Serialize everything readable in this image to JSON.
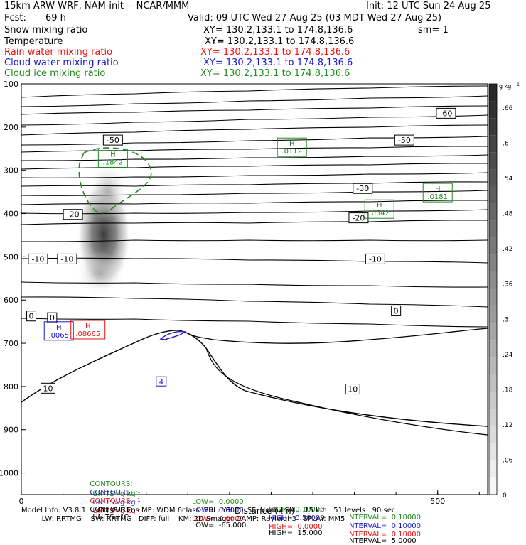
{
  "header": {
    "model": "15km ARW WRF, NAM-init -- NCAR/MMM",
    "init": "Init: 12 UTC Sun 24 Aug 25",
    "fcst_label": "Fcst:",
    "fcst_value": "69 h",
    "valid": "Valid: 09 UTC Wed 27 Aug 25 (03 MDT Wed 27 Aug 25)",
    "fields": [
      {
        "name": "Snow mixing ratio",
        "xy": "XY= 130.2,133.1 to 174.8,136.6",
        "extra": "sm= 1",
        "color": "#000000"
      },
      {
        "name": "Temperature",
        "xy": "XY= 130.2,133.1 to 174.8,136.6",
        "extra": "",
        "color": "#000000"
      },
      {
        "name": "Rain water mixing ratio",
        "xy": "XY= 130.2,133.1 to 174.8,136.6",
        "extra": "",
        "color": "#ee1111"
      },
      {
        "name": "Cloud water mixing ratio",
        "xy": "XY= 130.2,133.1 to 174.8,136.6",
        "extra": "",
        "color": "#1a1acc"
      },
      {
        "name": "Cloud ice mixing ratio",
        "xy": "XY= 130.2,133.1 to 174.8,136.6",
        "extra": "",
        "color": "#228b22"
      }
    ]
  },
  "chart_data": {
    "type": "contour",
    "xlabel": "Distance (km)",
    "x_ticks": [
      {
        "value": 0,
        "label": "0"
      },
      {
        "value": 500,
        "label": "500"
      }
    ],
    "xlim": [
      0,
      560
    ],
    "y_ticks": [
      {
        "p": 100,
        "label": "100"
      },
      {
        "p": 200,
        "label": "200"
      },
      {
        "p": 300,
        "label": "300"
      },
      {
        "p": 400,
        "label": "400"
      },
      {
        "p": 500,
        "label": "500"
      },
      {
        "p": 600,
        "label": "600"
      },
      {
        "p": 700,
        "label": "700"
      },
      {
        "p": 800,
        "label": "800"
      },
      {
        "p": 900,
        "label": "900"
      },
      {
        "p": 1000,
        "label": "1000"
      }
    ],
    "ylim_hpa": [
      100,
      1050
    ],
    "colorbar": {
      "units_label": "g kg",
      "units_exp": "-1",
      "range": [
        0,
        0.7
      ],
      "ticks": [
        {
          "value": 0,
          "label": "0"
        },
        {
          "value": 0.06,
          "label": ".06"
        },
        {
          "value": 0.12,
          "label": ".12"
        },
        {
          "value": 0.18,
          "label": ".18"
        },
        {
          "value": 0.24,
          "label": ".24"
        },
        {
          "value": 0.3,
          "label": ".3"
        },
        {
          "value": 0.36,
          "label": ".36"
        },
        {
          "value": 0.42,
          "label": ".42"
        },
        {
          "value": 0.48,
          "label": ".48"
        },
        {
          "value": 0.54,
          "label": ".54"
        },
        {
          "value": 0.6,
          "label": ".6"
        },
        {
          "value": 0.66,
          "label": ".66"
        }
      ]
    },
    "temperature_labels": [
      {
        "value": -60,
        "label": "-60",
        "x_km": 510,
        "p": 168
      },
      {
        "value": -50,
        "label": "-50",
        "x_km": 110,
        "p": 230
      },
      {
        "value": -50,
        "label": "-50",
        "x_km": 460,
        "p": 230
      },
      {
        "value": -30,
        "label": "-30",
        "x_km": 410,
        "p": 342
      },
      {
        "value": -20,
        "label": "-20",
        "x_km": 62,
        "p": 402
      },
      {
        "value": -20,
        "label": "-20",
        "x_km": 405,
        "p": 410
      },
      {
        "value": -10,
        "label": "-10",
        "x_km": 20,
        "p": 505
      },
      {
        "value": -10,
        "label": "-10",
        "x_km": 55,
        "p": 505
      },
      {
        "value": -10,
        "label": "-10",
        "x_km": 425,
        "p": 505
      },
      {
        "value": 0,
        "label": "0",
        "x_km": 12,
        "p": 637
      },
      {
        "value": 0,
        "label": "0",
        "x_km": 37,
        "p": 641
      },
      {
        "value": 0,
        "label": "0",
        "x_km": 450,
        "p": 625
      },
      {
        "value": 10,
        "label": "10",
        "x_km": 32,
        "p": 804
      },
      {
        "value": 10,
        "label": "10",
        "x_km": 398,
        "p": 806
      }
    ],
    "maxima": [
      {
        "field": "Cloud ice mixing ratio",
        "label": "H",
        "value": ".1842",
        "x_km": 110,
        "p": 270,
        "color": "#228b22"
      },
      {
        "field": "Cloud ice mixing ratio",
        "label": "H",
        "value": ".0112",
        "x_km": 325,
        "p": 245,
        "color": "#228b22"
      },
      {
        "field": "Cloud ice mixing ratio",
        "label": "H",
        "value": ".0542",
        "x_km": 430,
        "p": 388,
        "color": "#228b22"
      },
      {
        "field": "Cloud ice mixing ratio",
        "label": "H",
        "value": ".0181",
        "x_km": 500,
        "p": 350,
        "color": "#228b22"
      },
      {
        "field": "Cloud water mixing ratio",
        "label": "H",
        "value": ".0065",
        "x_km": 45,
        "p": 670,
        "color": "#1a1acc"
      },
      {
        "field": "Rain water mixing ratio",
        "label": "H",
        "value": ".08665",
        "x_km": 80,
        "p": 667,
        "color": "#ee1111"
      }
    ],
    "cloud_water_label": {
      "label": "4",
      "x_km": 168,
      "p": 789
    },
    "snow_max_g_per_kg": 0.66
  },
  "contour_info": [
    {
      "field": "Cloud ice mixing ratio",
      "contours": "CONTOURS:",
      "units": "UNITS=g kg",
      "exp": "-1",
      "low": "LOW=  0.0000",
      "high": "HIGH= 0.10000",
      "interval": "INTERVAL=  0.10000",
      "color": "#228b22"
    },
    {
      "field": "Cloud water mixing ratio",
      "contours": "CONTOURS:",
      "units": "UNITS=g kg",
      "exp": "-1",
      "low": "LOW=  0.0000",
      "high": "HIGH= 0.50000",
      "interval": "INTERVAL=  0.10000",
      "color": "#1a1acc"
    },
    {
      "field": "Rain water mixing ratio",
      "contours": "CONTOURS:",
      "units": "UNITS=g kg",
      "exp": "-1",
      "low": "LOW=  0.0000",
      "high": "HIGH=  0.0000",
      "interval": "INTERVAL=  0.10000",
      "color": "#ee1111"
    },
    {
      "field": "Temperature",
      "contours": "CONTOURS:",
      "units": "UNITS=°C",
      "exp": "",
      "low": "LOW=  -65.000",
      "high": "HIGH=  15.000",
      "interval": "INTERVAL=  5.0000",
      "color": "#000000"
    }
  ],
  "footer": {
    "line1": "Model Info: V3.8.1     CU: G-F Ens MP: WDM 6class  PBL: YSU     SF: Noah LSM    15 km   51 levels   90 sec",
    "line2": "         LW: RRTMG    SW: RRTMG   DIFF: full    KM: 2D Smagor DAMP: Rayleigh3   SFLAY: MM5"
  }
}
